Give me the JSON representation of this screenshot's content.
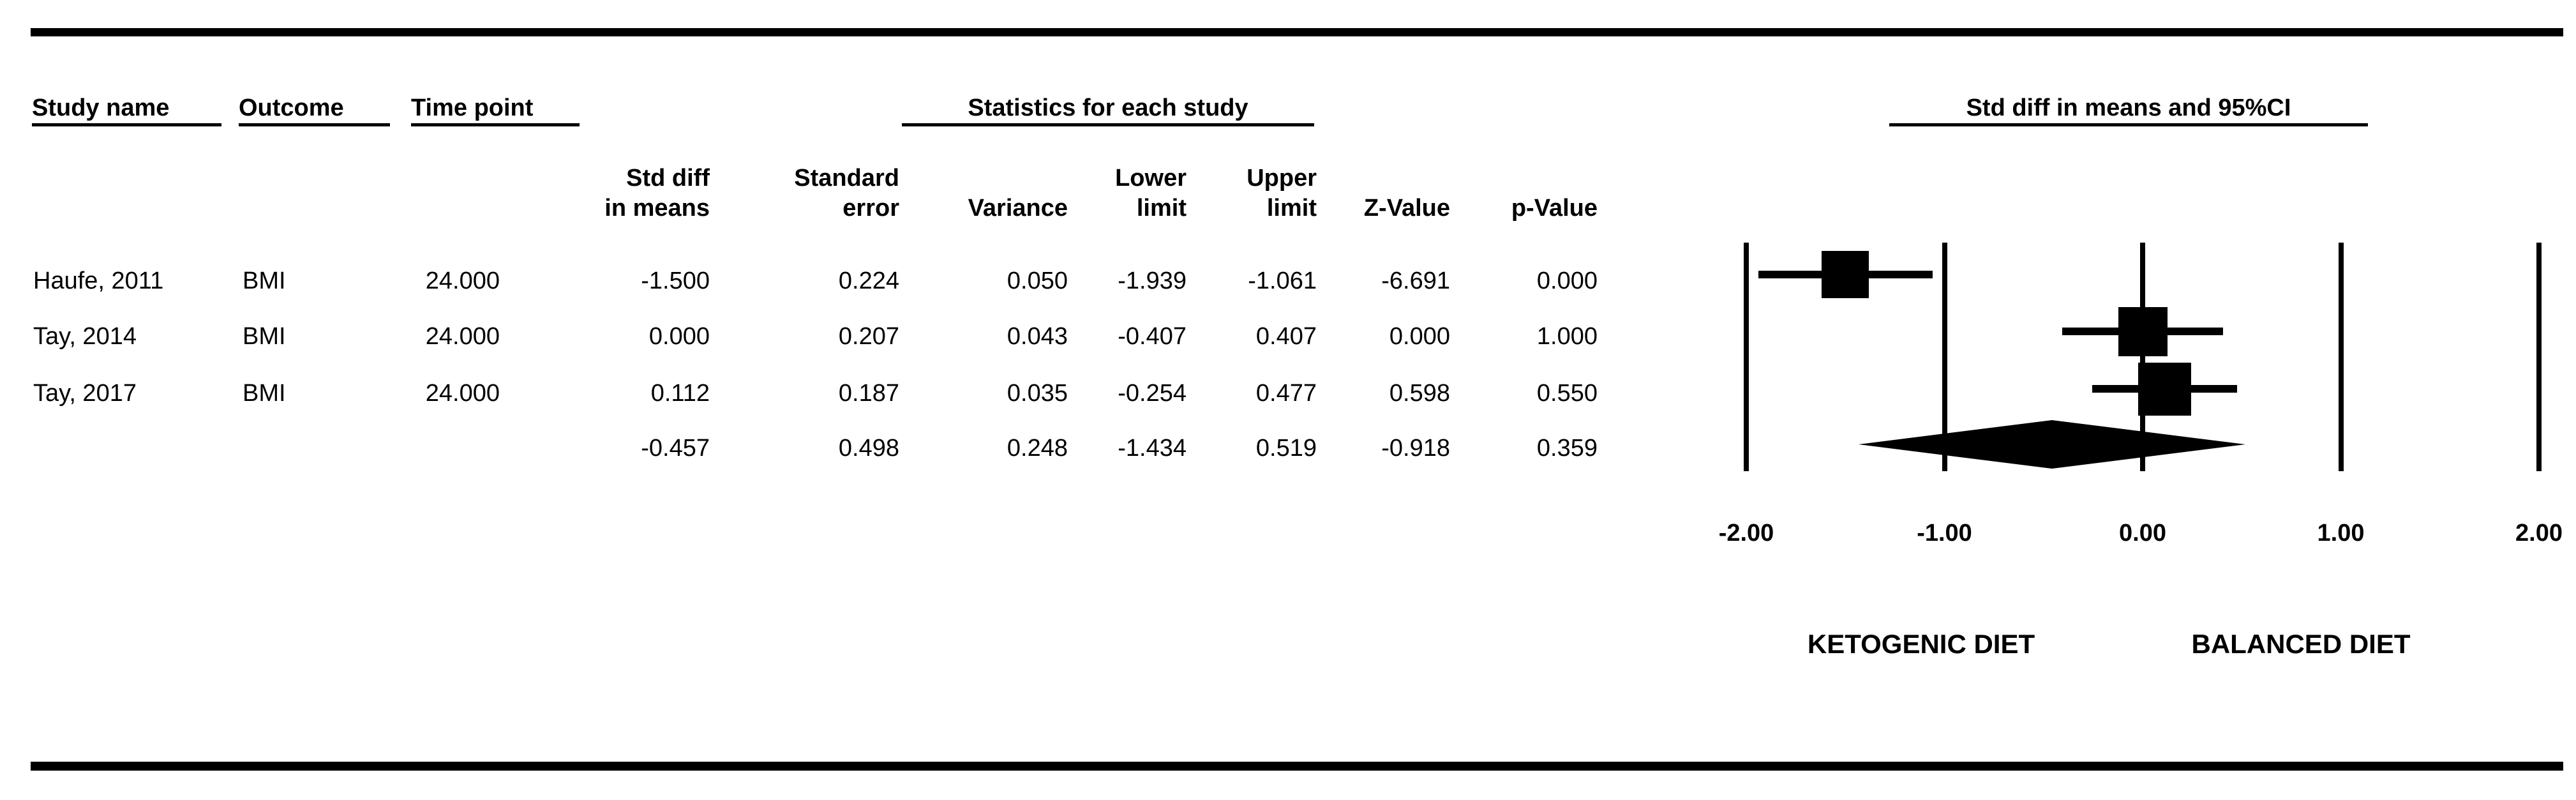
{
  "figure": {
    "group_headers": {
      "study": "Study name",
      "outcome": "Outcome",
      "time_point": "Time point",
      "stats": "Statistics for each study",
      "plot": "Std diff in means and 95%CI"
    },
    "column_headers": {
      "std_diff": "Std diff\nin means",
      "std_err": "Standard\nerror",
      "variance": "Variance",
      "lower": "Lower\nlimit",
      "upper": "Upper\nlimit",
      "z": "Z-Value",
      "p": "p-Value"
    }
  },
  "chart_data": {
    "type": "forest",
    "title": "Std diff in means and 95%CI",
    "stats_group_title": "Statistics for each study",
    "columns": [
      "Study name",
      "Outcome",
      "Time point",
      "Std diff in means",
      "Standard error",
      "Variance",
      "Lower limit",
      "Upper limit",
      "Z-Value",
      "p-Value"
    ],
    "x_axis": {
      "min": -2,
      "max": 2,
      "tick_values": [
        -2,
        -1,
        0,
        1,
        2
      ],
      "tick_labels": [
        "-2.00",
        "-1.00",
        "0.00",
        "1.00",
        "2.00"
      ]
    },
    "footer_labels": {
      "left": "KETOGENIC DIET",
      "right": "BALANCED DIET"
    },
    "rows": [
      {
        "study": "Haufe, 2011",
        "outcome": "BMI",
        "time_point": "24.000",
        "std_diff": "-1.500",
        "std_err": "0.224",
        "variance": "0.050",
        "lower": "-1.939",
        "upper": "-1.061",
        "z": "-6.691",
        "p": "0.000",
        "point_value": -1.5,
        "ci_lower": -1.939,
        "ci_upper": -1.061,
        "marker_size": 74,
        "summary": false
      },
      {
        "study": "Tay, 2014",
        "outcome": "BMI",
        "time_point": "24.000",
        "std_diff": "0.000",
        "std_err": "0.207",
        "variance": "0.043",
        "lower": "-0.407",
        "upper": "0.407",
        "z": "0.000",
        "p": "1.000",
        "point_value": 0.0,
        "ci_lower": -0.407,
        "ci_upper": 0.407,
        "marker_size": 77,
        "summary": false
      },
      {
        "study": "Tay, 2017",
        "outcome": "BMI",
        "time_point": "24.000",
        "std_diff": "0.112",
        "std_err": "0.187",
        "variance": "0.035",
        "lower": "-0.254",
        "upper": "0.477",
        "z": "0.598",
        "p": "0.550",
        "point_value": 0.112,
        "ci_lower": -0.254,
        "ci_upper": 0.477,
        "marker_size": 83,
        "summary": false
      },
      {
        "study": "",
        "outcome": "",
        "time_point": "",
        "std_diff": "-0.457",
        "std_err": "0.498",
        "variance": "0.248",
        "lower": "-1.434",
        "upper": "0.519",
        "z": "-0.918",
        "p": "0.359",
        "point_value": -0.457,
        "ci_lower": -1.434,
        "ci_upper": 0.519,
        "summary": true
      }
    ]
  }
}
